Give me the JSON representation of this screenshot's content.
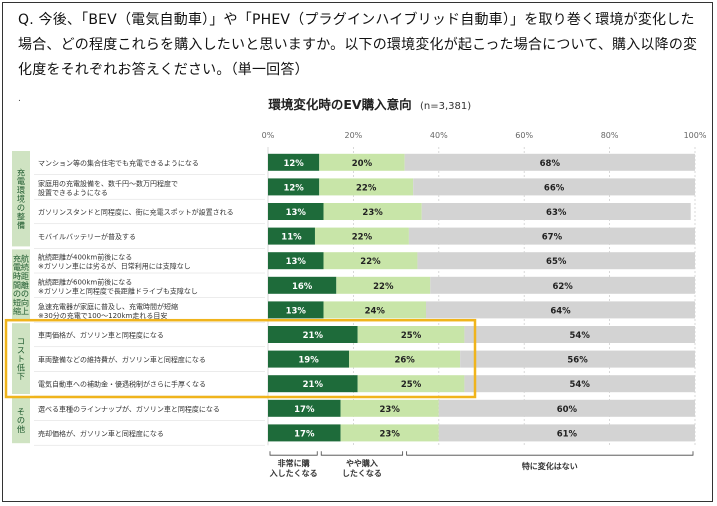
{
  "question": "Q. 今後、「BEV（電気自動車）」や「PHEV（プラグインハイブリッド自動車）」を取り巻く環境が変化した場合、どの程度これらを購入したいと思いますか。以下の環境変化が起こった場合について、購入以降の変化度をそれぞれお答えください。（単一回答）",
  "note_mark": ".",
  "colors": {
    "strong": "#1e6b3a",
    "some": "#c8e5a8",
    "none": "#d3d3d3",
    "groupBg": "#cfe3c2",
    "highlight": "#f0b41c"
  },
  "chart_data": {
    "type": "bar",
    "orientation": "horizontal",
    "stacked": true,
    "title": "環境変化時のEV購入意向",
    "n_label": "(n=3,381)",
    "xlim": [
      0,
      100
    ],
    "xticks": [
      "0%",
      "20%",
      "40%",
      "60%",
      "80%",
      "100%"
    ],
    "series_names": [
      "非常に購入したくなる",
      "やや購入したくなる",
      "特に変化はない"
    ],
    "groups": [
      {
        "name": "充電環境の整備",
        "rows": [
          0,
          1,
          2,
          3
        ]
      },
      {
        "name": "航続距離の向上充電時間の短縮",
        "rows": [
          4,
          5,
          6
        ]
      },
      {
        "name": "コスト低下",
        "rows": [
          7,
          8,
          9
        ],
        "highlighted": true
      },
      {
        "name": "その他",
        "rows": [
          10,
          11
        ]
      }
    ],
    "rows": [
      {
        "label": [
          "マンション等の集合住宅でも充電できるようになる"
        ],
        "values": [
          12,
          20,
          68
        ]
      },
      {
        "label": [
          "家庭用の充電設備を、数千円～数万円程度で",
          "設置できるようになる"
        ],
        "values": [
          12,
          22,
          66
        ]
      },
      {
        "label": [
          "ガソリンスタンドと同程度に、街に充電スポットが設置される"
        ],
        "values": [
          13,
          23,
          63
        ]
      },
      {
        "label": [
          "モバイルバッテリーが普及する"
        ],
        "values": [
          11,
          22,
          67
        ]
      },
      {
        "label": [
          "航続距離が400km前後になる",
          "※ガソリン車には劣るが、日常利用には支障なし"
        ],
        "values": [
          13,
          22,
          65
        ]
      },
      {
        "label": [
          "航続距離が600km前後になる",
          "※ガソリン車と同程度で長距離ドライブも支障なし"
        ],
        "values": [
          16,
          22,
          62
        ]
      },
      {
        "label": [
          "急速充電器が家庭に普及し、充電時間が短縮",
          "※30分の充電で100～120km走れる目安"
        ],
        "values": [
          13,
          24,
          64
        ]
      },
      {
        "label": [
          "車両価格が、ガソリン車と同程度になる"
        ],
        "values": [
          21,
          25,
          54
        ]
      },
      {
        "label": [
          "車両整備などの維持費が、ガソリン車と同程度になる"
        ],
        "values": [
          19,
          26,
          56
        ]
      },
      {
        "label": [
          "電気自動車への補助金・優遇税制がさらに手厚くなる"
        ],
        "values": [
          21,
          25,
          54
        ]
      },
      {
        "label": [
          "選べる車種のラインナップが、ガソリン車と同程度になる"
        ],
        "values": [
          17,
          23,
          60
        ]
      },
      {
        "label": [
          "売却価格が、ガソリン車と同程度になる"
        ],
        "values": [
          17,
          23,
          61
        ]
      }
    ]
  }
}
